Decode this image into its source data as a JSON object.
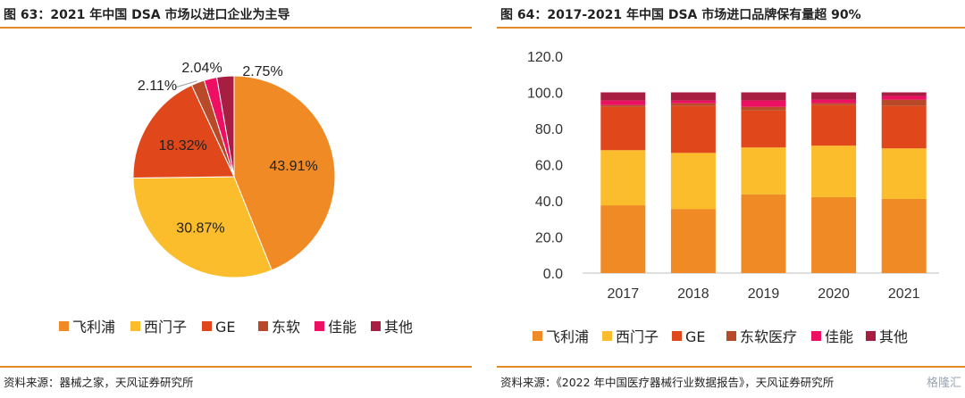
{
  "left": {
    "title": "图 63：2021 年中国 DSA 市场以进口企业为主导",
    "source": "资料来源：器械之家，天风证券研究所"
  },
  "right": {
    "title": "图 64：2017-2021 年中国 DSA 市场进口品牌保有量超 90%",
    "source": "资料来源：《2022 年中国医疗器械行业数据报告》，天风证券研究所"
  },
  "watermark": "格隆汇",
  "chart_data": [
    {
      "type": "pie",
      "categories": [
        "飞利浦",
        "西门子",
        "GE",
        "东软",
        "佳能",
        "其他"
      ],
      "values": [
        43.91,
        30.87,
        18.32,
        2.11,
        2.04,
        2.75
      ],
      "labels": [
        "43.91%",
        "30.87%",
        "18.32%",
        "2.11%",
        "2.04%",
        "2.75%"
      ],
      "colors": [
        "#f08a24",
        "#fbbd2b",
        "#e0481c",
        "#b84a2a",
        "#ec0f62",
        "#a81d42"
      ],
      "legend_position": "bottom"
    },
    {
      "type": "bar",
      "stacked": true,
      "categories": [
        "2017",
        "2018",
        "2019",
        "2020",
        "2021"
      ],
      "series": [
        {
          "name": "飞利浦",
          "color": "#f08a24",
          "values": [
            37.5,
            35.5,
            43.5,
            42.0,
            41.0
          ]
        },
        {
          "name": "西门子",
          "color": "#fbbd2b",
          "values": [
            30.5,
            31.0,
            26.0,
            28.5,
            28.0
          ]
        },
        {
          "name": "GE",
          "color": "#e0481c",
          "values": [
            24.0,
            26.0,
            20.5,
            22.5,
            23.5
          ]
        },
        {
          "name": "东软医疗",
          "color": "#b84a2a",
          "values": [
            1.0,
            1.5,
            2.0,
            1.0,
            3.5
          ]
        },
        {
          "name": "佳能",
          "color": "#ec0f62",
          "values": [
            2.5,
            1.5,
            3.5,
            2.0,
            2.0
          ]
        },
        {
          "name": "其他",
          "color": "#a81d42",
          "values": [
            4.5,
            4.5,
            4.5,
            4.0,
            2.0
          ]
        }
      ],
      "yticks": [
        "0.0",
        "20.0",
        "40.0",
        "60.0",
        "80.0",
        "100.0",
        "120.0"
      ],
      "ylim": [
        0,
        120
      ],
      "grid": false,
      "legend_position": "bottom"
    }
  ]
}
